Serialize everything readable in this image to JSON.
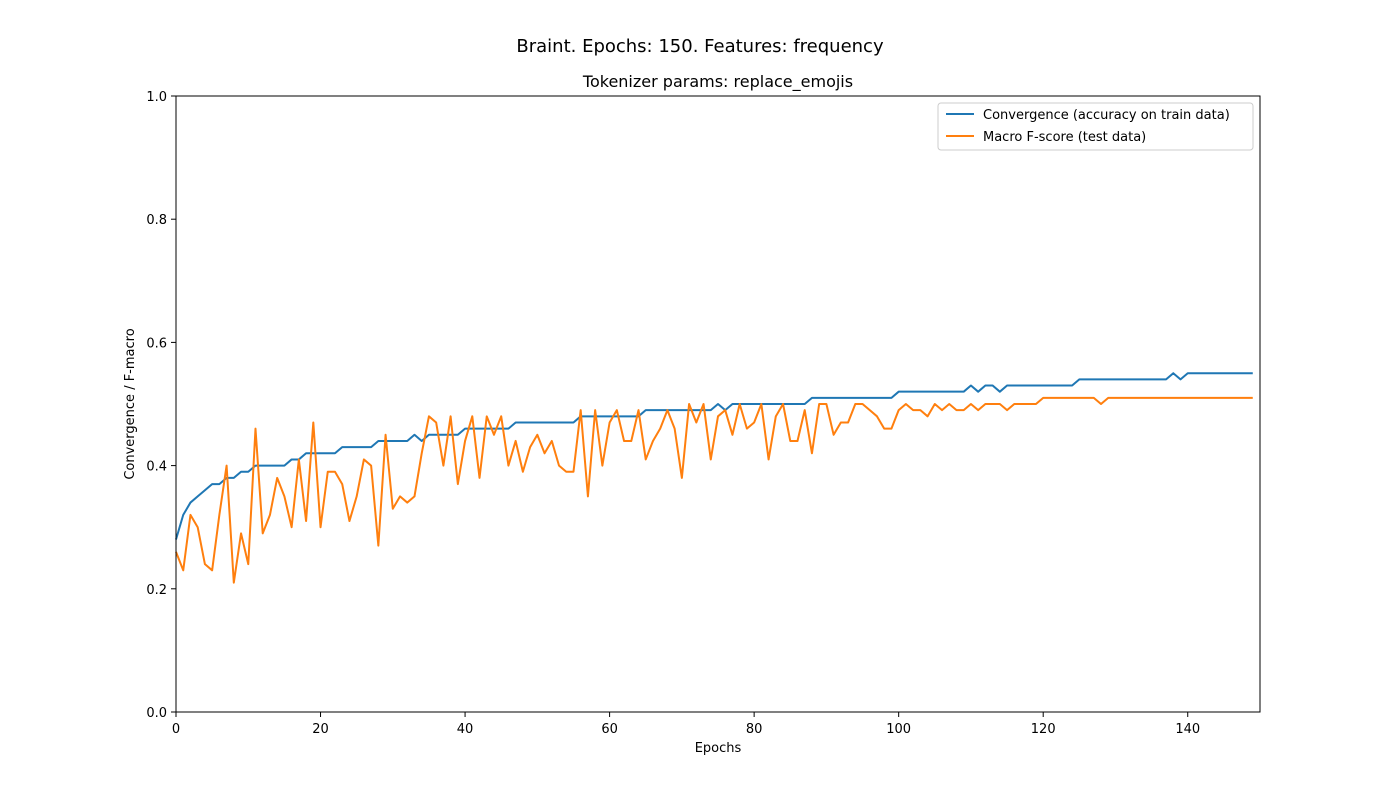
{
  "figure": {
    "suptitle": "Braint. Epochs: 150. Features: frequency"
  },
  "chart_data": {
    "type": "line",
    "title": "Tokenizer params: replace_emojis",
    "xlabel": "Epochs",
    "ylabel": "Convergence / F-macro",
    "xlim": [
      0,
      150
    ],
    "ylim": [
      0.0,
      1.0
    ],
    "xticks": [
      0,
      20,
      40,
      60,
      80,
      100,
      120,
      140
    ],
    "xtick_labels": [
      "0",
      "20",
      "40",
      "60",
      "80",
      "100",
      "120",
      "140"
    ],
    "yticks": [
      0.0,
      0.2,
      0.4,
      0.6,
      0.8,
      1.0
    ],
    "ytick_labels": [
      "0.0",
      "0.2",
      "0.4",
      "0.6",
      "0.8",
      "1.0"
    ],
    "grid": false,
    "legend_position": "top-right",
    "x": [
      0,
      1,
      2,
      3,
      4,
      5,
      6,
      7,
      8,
      9,
      10,
      11,
      12,
      13,
      14,
      15,
      16,
      17,
      18,
      19,
      20,
      21,
      22,
      23,
      24,
      25,
      26,
      27,
      28,
      29,
      30,
      31,
      32,
      33,
      34,
      35,
      36,
      37,
      38,
      39,
      40,
      41,
      42,
      43,
      44,
      45,
      46,
      47,
      48,
      49,
      50,
      51,
      52,
      53,
      54,
      55,
      56,
      57,
      58,
      59,
      60,
      61,
      62,
      63,
      64,
      65,
      66,
      67,
      68,
      69,
      70,
      71,
      72,
      73,
      74,
      75,
      76,
      77,
      78,
      79,
      80,
      81,
      82,
      83,
      84,
      85,
      86,
      87,
      88,
      89,
      90,
      91,
      92,
      93,
      94,
      95,
      96,
      97,
      98,
      99,
      100,
      101,
      102,
      103,
      104,
      105,
      106,
      107,
      108,
      109,
      110,
      111,
      112,
      113,
      114,
      115,
      116,
      117,
      118,
      119,
      120,
      121,
      122,
      123,
      124,
      125,
      126,
      127,
      128,
      129,
      130,
      131,
      132,
      133,
      134,
      135,
      136,
      137,
      138,
      139,
      140,
      141,
      142,
      143,
      144,
      145,
      146,
      147,
      148,
      149
    ],
    "series": [
      {
        "name": "Convergence (accuracy on train data)",
        "color": "#1f77b4",
        "values": [
          0.28,
          0.32,
          0.34,
          0.35,
          0.36,
          0.37,
          0.37,
          0.38,
          0.38,
          0.39,
          0.39,
          0.4,
          0.4,
          0.4,
          0.4,
          0.4,
          0.41,
          0.41,
          0.42,
          0.42,
          0.42,
          0.42,
          0.42,
          0.43,
          0.43,
          0.43,
          0.43,
          0.43,
          0.44,
          0.44,
          0.44,
          0.44,
          0.44,
          0.45,
          0.44,
          0.45,
          0.45,
          0.45,
          0.45,
          0.45,
          0.46,
          0.46,
          0.46,
          0.46,
          0.46,
          0.46,
          0.46,
          0.47,
          0.47,
          0.47,
          0.47,
          0.47,
          0.47,
          0.47,
          0.47,
          0.47,
          0.48,
          0.48,
          0.48,
          0.48,
          0.48,
          0.48,
          0.48,
          0.48,
          0.48,
          0.49,
          0.49,
          0.49,
          0.49,
          0.49,
          0.49,
          0.49,
          0.49,
          0.49,
          0.49,
          0.5,
          0.49,
          0.5,
          0.5,
          0.5,
          0.5,
          0.5,
          0.5,
          0.5,
          0.5,
          0.5,
          0.5,
          0.5,
          0.51,
          0.51,
          0.51,
          0.51,
          0.51,
          0.51,
          0.51,
          0.51,
          0.51,
          0.51,
          0.51,
          0.51,
          0.52,
          0.52,
          0.52,
          0.52,
          0.52,
          0.52,
          0.52,
          0.52,
          0.52,
          0.52,
          0.53,
          0.52,
          0.53,
          0.53,
          0.52,
          0.53,
          0.53,
          0.53,
          0.53,
          0.53,
          0.53,
          0.53,
          0.53,
          0.53,
          0.53,
          0.54,
          0.54,
          0.54,
          0.54,
          0.54,
          0.54,
          0.54,
          0.54,
          0.54,
          0.54,
          0.54,
          0.54,
          0.54,
          0.55,
          0.54,
          0.55,
          0.55,
          0.55,
          0.55,
          0.55,
          0.55,
          0.55,
          0.55,
          0.55,
          0.55
        ]
      },
      {
        "name": "Macro F-score (test data)",
        "color": "#ff7f0e",
        "values": [
          0.26,
          0.23,
          0.32,
          0.3,
          0.24,
          0.23,
          0.32,
          0.4,
          0.21,
          0.29,
          0.24,
          0.46,
          0.29,
          0.32,
          0.38,
          0.35,
          0.3,
          0.41,
          0.31,
          0.47,
          0.3,
          0.39,
          0.39,
          0.37,
          0.31,
          0.35,
          0.41,
          0.4,
          0.27,
          0.45,
          0.33,
          0.35,
          0.34,
          0.35,
          0.42,
          0.48,
          0.47,
          0.4,
          0.48,
          0.37,
          0.44,
          0.48,
          0.38,
          0.48,
          0.45,
          0.48,
          0.4,
          0.44,
          0.39,
          0.43,
          0.45,
          0.42,
          0.44,
          0.4,
          0.39,
          0.39,
          0.49,
          0.35,
          0.49,
          0.4,
          0.47,
          0.49,
          0.44,
          0.44,
          0.49,
          0.41,
          0.44,
          0.46,
          0.49,
          0.46,
          0.38,
          0.5,
          0.47,
          0.5,
          0.41,
          0.48,
          0.49,
          0.45,
          0.5,
          0.46,
          0.47,
          0.5,
          0.41,
          0.48,
          0.5,
          0.44,
          0.44,
          0.49,
          0.42,
          0.5,
          0.5,
          0.45,
          0.47,
          0.47,
          0.5,
          0.5,
          0.49,
          0.48,
          0.46,
          0.46,
          0.49,
          0.5,
          0.49,
          0.49,
          0.48,
          0.5,
          0.49,
          0.5,
          0.49,
          0.49,
          0.5,
          0.49,
          0.5,
          0.5,
          0.5,
          0.49,
          0.5,
          0.5,
          0.5,
          0.5,
          0.51,
          0.51,
          0.51,
          0.51,
          0.51,
          0.51,
          0.51,
          0.51,
          0.5,
          0.51,
          0.51,
          0.51,
          0.51,
          0.51,
          0.51,
          0.51,
          0.51,
          0.51,
          0.51,
          0.51,
          0.51,
          0.51,
          0.51,
          0.51,
          0.51,
          0.51,
          0.51,
          0.51,
          0.51,
          0.51
        ]
      }
    ]
  }
}
